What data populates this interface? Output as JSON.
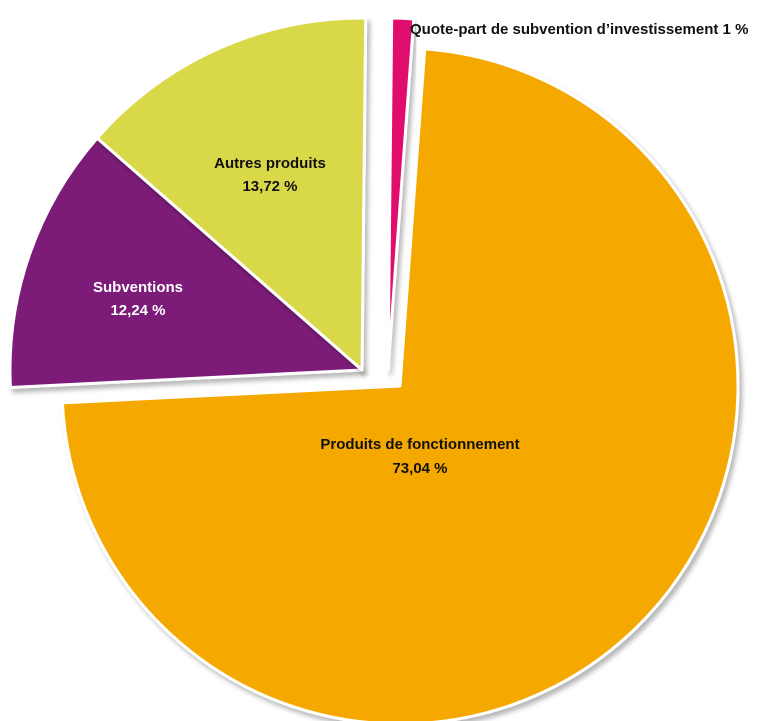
{
  "chart_data": {
    "type": "pie",
    "slices": [
      {
        "label": "Produits de fonctionnement",
        "value_text": "73,04 %",
        "value": 73.04,
        "color": "#f5a800"
      },
      {
        "label": "Subventions",
        "value_text": "12,24 %",
        "value": 12.24,
        "color": "#7b1a78"
      },
      {
        "label": "Autres produits",
        "value_text": "13,72 %",
        "value": 13.72,
        "color": "#d8d84a"
      },
      {
        "label": "Quote-part de subvention d’investissement 1 %",
        "value_text": "",
        "value": 1,
        "color": "#e0106e"
      }
    ],
    "exploded": true,
    "legend": "none"
  }
}
